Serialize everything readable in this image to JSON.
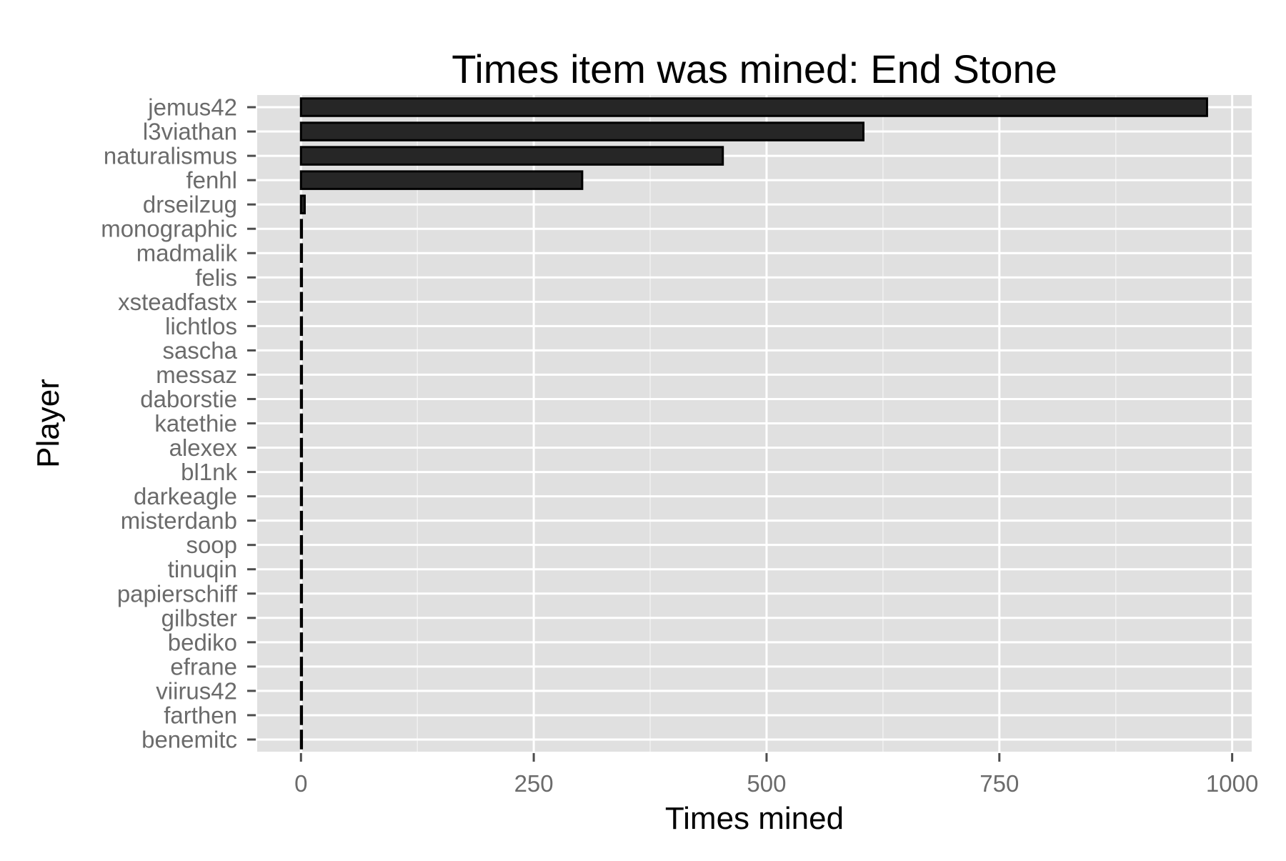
{
  "chart_data": {
    "type": "bar",
    "orientation": "horizontal",
    "title": "Times item was mined: End Stone",
    "xlabel": "Times mined",
    "ylabel": "Player",
    "xlim": [
      -47,
      1021
    ],
    "xticks": [
      0,
      250,
      500,
      750,
      1000
    ],
    "xtick_labels": [
      "0",
      "250",
      "500",
      "750",
      "1000"
    ],
    "grid": true,
    "legend": "none",
    "colors": {
      "panel_background": "#e0e0e0",
      "grid_major": "#ffffff",
      "grid_minor": "#f0f0f0",
      "bar_fill": "#262626",
      "bar_outline": "#000000",
      "tick_label": "#6b6b6b",
      "tick_mark": "#4d4d4d"
    },
    "categories": [
      "jemus42",
      "l3viathan",
      "naturalismus",
      "fenhl",
      "drseilzug",
      "monographic",
      "madmalik",
      "felis",
      "xsteadfastx",
      "lichtlos",
      "sascha",
      "messaz",
      "daborstie",
      "katethie",
      "alexex",
      "bl1nk",
      "darkeagle",
      "misterdanb",
      "soop",
      "tinuqin",
      "papierschiff",
      "gilbster",
      "bediko",
      "efrane",
      "viirus42",
      "farthen",
      "benemitc"
    ],
    "values": [
      973,
      604,
      453,
      302,
      4,
      1,
      1,
      1,
      1,
      1,
      1,
      1,
      1,
      1,
      1,
      1,
      1,
      1,
      1,
      1,
      1,
      1,
      1,
      1,
      1,
      1,
      1
    ]
  }
}
